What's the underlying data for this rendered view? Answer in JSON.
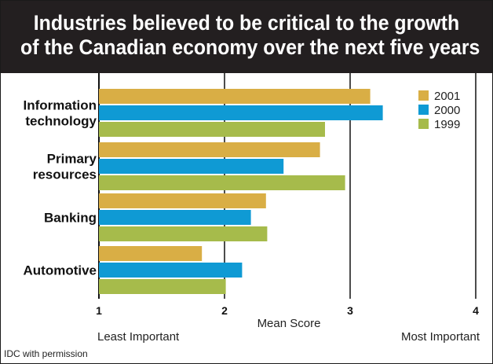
{
  "title_lines": [
    "Industries believed to be critical to the growth",
    "of the Canadian economy over the next five years"
  ],
  "source": "IDC with permission",
  "chart_data": {
    "type": "bar",
    "orientation": "horizontal",
    "categories": [
      "Information technology",
      "Primary resources",
      "Banking",
      "Automotive"
    ],
    "category_label_lines": [
      [
        "Information",
        "technology"
      ],
      [
        "Primary",
        "resources"
      ],
      [
        "Banking"
      ],
      [
        "Automotive"
      ]
    ],
    "series": [
      {
        "name": "2001",
        "color": "#d9ae45",
        "values": [
          3.16,
          2.76,
          2.33,
          1.82
        ]
      },
      {
        "name": "2000",
        "color": "#0f9ad4",
        "values": [
          3.26,
          2.47,
          2.21,
          2.14
        ]
      },
      {
        "name": "1999",
        "color": "#a6bb4b",
        "values": [
          2.8,
          2.96,
          2.34,
          2.01
        ]
      }
    ],
    "xlim": [
      1,
      4
    ],
    "xticks": [
      "1",
      "2",
      "3",
      "4"
    ],
    "xlabel": "Mean Score",
    "x_left_label": "Least Important",
    "x_right_label": "Most Important",
    "grid": "vertical lines at 2, 3, 4",
    "legend_position": "top-right"
  }
}
